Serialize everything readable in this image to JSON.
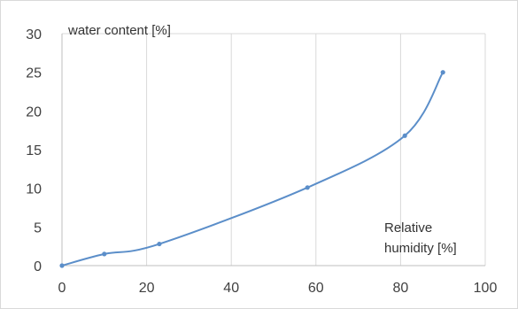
{
  "chart_data": {
    "type": "line",
    "title": "",
    "ylabel": "water content [%]",
    "xlabel_lines": [
      "Relative",
      "humidity [%]"
    ],
    "x": [
      0,
      10,
      23,
      58,
      81,
      90
    ],
    "series": [
      {
        "values": [
          0,
          1.5,
          2.8,
          10.1,
          16.8,
          25
        ]
      }
    ],
    "xlim": [
      0,
      100
    ],
    "ylim": [
      0,
      30
    ],
    "xticks": [
      0,
      20,
      40,
      60,
      80,
      100
    ],
    "yticks": [
      0,
      5,
      10,
      15,
      20,
      25,
      30
    ],
    "xtick_labels": [
      "0",
      "20",
      "40",
      "60",
      "80",
      "100"
    ],
    "ytick_labels": [
      "0",
      "5",
      "10",
      "15",
      "20",
      "25",
      "30"
    ],
    "grid": "vertical",
    "smoothed": true,
    "markers": true,
    "line_color": "#5b8ec9"
  }
}
